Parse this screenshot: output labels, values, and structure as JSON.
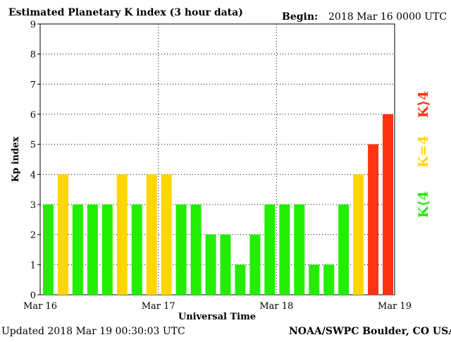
{
  "colors": {
    "low": "#22ee00",
    "mid": "#ffd600",
    "high": "#ff3311",
    "grid": "#000000",
    "background": "#ffffff"
  },
  "header": {
    "title": "Estimated Planetary K index (3 hour data)",
    "begin_label": "Begin:",
    "begin_value": "2018 Mar 16 0000 UTC"
  },
  "footer": {
    "updated": "Updated 2018 Mar 19 00:30:03 UTC",
    "source": "NOAA/SWPC Boulder, CO USA"
  },
  "legend": {
    "low": "K⟨4",
    "mid": "K=4",
    "high": "K⟩4"
  },
  "chart_data": {
    "type": "bar",
    "title": "Estimated Planetary K index (3 hour data)",
    "xlabel": "Universal Time",
    "ylabel": "Kp index",
    "ylim": [
      0,
      9
    ],
    "yticks": [
      "0",
      "1",
      "2",
      "3",
      "4",
      "5",
      "6",
      "7",
      "8",
      "9"
    ],
    "xticks": [
      "Mar 16",
      "Mar 17",
      "Mar 18",
      "Mar 19"
    ],
    "grid": "dotted",
    "thresholds": {
      "mid": 4,
      "high": 5
    },
    "values": [
      3,
      4,
      3,
      3,
      3,
      4,
      3,
      4,
      4,
      3,
      3,
      2,
      2,
      1,
      2,
      3,
      3,
      3,
      1,
      1,
      3,
      4,
      5,
      6
    ]
  }
}
